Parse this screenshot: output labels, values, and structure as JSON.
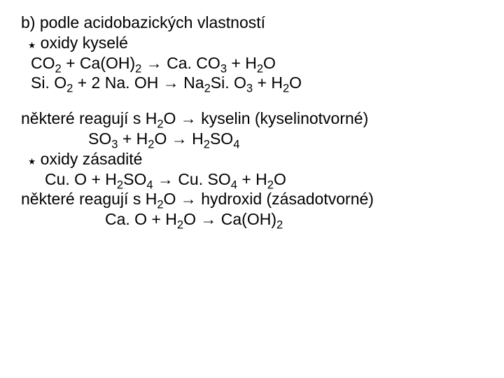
{
  "text_color": "#000000",
  "background_color": "#ffffff",
  "font_family": "Arial",
  "font_size_pt": 17,
  "lines": {
    "l1": "b) podle acidobazických vlastností",
    "l2_bullet": "٭",
    "l2": "oxidy kyselé",
    "l3_a": "CO",
    "l3_b": " + Ca(OH)",
    "l3_c": " → Ca. CO",
    "l3_d": " + H",
    "l3_e": "O",
    "l4_a": "Si. O",
    "l4_b": " + 2 Na. OH → Na",
    "l4_c": "Si. O",
    "l4_d": " + H",
    "l4_e": "O",
    "l5_a": "některé reagují s H",
    "l5_b": "O → kyselin (kyselinotvorné)",
    "l6_a": "SO",
    "l6_b": " + H",
    "l6_c": "O → H",
    "l6_d": "SO",
    "l7_bullet": "٭",
    "l7": "oxidy zásadité",
    "l8_a": "Cu. O + H",
    "l8_b": "SO",
    "l8_c": " → Cu. SO",
    "l8_d": " + H",
    "l8_e": "O",
    "l9_a": "některé reagují s H",
    "l9_b": "O → hydroxid (zásadotvorné)",
    "l10_a": "Ca. O + H",
    "l10_b": "O → Ca(OH)",
    "sub2": "2",
    "sub3": "3",
    "sub4": "4"
  }
}
